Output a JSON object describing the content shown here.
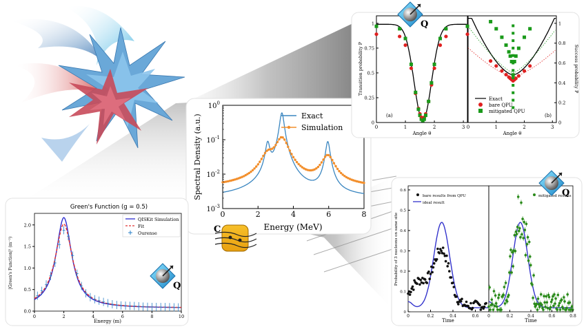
{
  "chart_data": [
    {
      "id": "spectral",
      "type": "line",
      "xlabel": "Energy (MeV)",
      "ylabel": "Spectral Density (a.u.)",
      "xlim": [
        0,
        8
      ],
      "ylim": [
        0.001,
        1
      ],
      "yscale": "log",
      "xticks": [
        "0",
        "2",
        "4",
        "6",
        "8"
      ],
      "yticks": [
        "10^-3",
        "10^-2",
        "10^-1",
        "10^0"
      ],
      "legend_position": "top-right",
      "series": [
        {
          "name": "Exact",
          "color": "#3a86c0",
          "peaks": [
            2.55,
            3.35,
            5.95
          ],
          "heights": [
            0.075,
            0.6,
            0.085
          ],
          "baseline": 0.002
        },
        {
          "name": "Simulation",
          "color": "#f28e2b",
          "marker": "dot",
          "x_step": 0.1,
          "peaks": [
            2.55,
            3.35,
            5.95
          ],
          "heights": [
            0.028,
            0.11,
            0.03
          ],
          "baseline": 0.004
        }
      ]
    },
    {
      "id": "transition",
      "type": "scatter",
      "panel_labels": [
        "(a)",
        "(b)"
      ],
      "xlabel": "Angle θ",
      "ylabel_left": "Transition probability P",
      "ylabel_right": "Success probability P",
      "xlim": [
        0,
        3.14
      ],
      "ylim": [
        0,
        1
      ],
      "xticks": [
        "0",
        "1",
        "2",
        "3"
      ],
      "yticks_left": [
        "0",
        "0.25",
        "0.5",
        "0.75",
        "1"
      ],
      "yticks_right": [
        "0",
        "0.2",
        "0.4",
        "0.6",
        "0.8",
        "1"
      ],
      "legend": [
        "Exact",
        "bare QPU",
        "mitigated QPU"
      ],
      "colors": {
        "exact": "#000000",
        "bare": "#e02020",
        "mitigated": "#1a9a1a"
      }
    },
    {
      "id": "greens",
      "type": "line",
      "title": "Green's Function (g = 0.5)",
      "xlabel": "Energy (m)",
      "ylabel": "|Green's Function|² (m⁻²)",
      "xlim": [
        0,
        10
      ],
      "ylim": [
        0,
        2.2
      ],
      "xticks": [
        "0",
        "2",
        "4",
        "6",
        "8",
        "10"
      ],
      "yticks": [
        "0.0",
        "0.5",
        "1.0",
        "1.5",
        "2.0"
      ],
      "legend": [
        "QISKit Simulation",
        "Fit",
        "Ourense"
      ],
      "peak_x": 2.0,
      "peak_y": 2.15,
      "colors": {
        "sim": "#2b2bd0",
        "fit": "#e03030",
        "ourense": "#2a80c8"
      }
    },
    {
      "id": "nucleons",
      "type": "scatter",
      "ylabel": "Probability of 3 nucleons on same site",
      "xlabel": "Time",
      "xticks_left": [
        "0",
        "0.2",
        "0.4",
        "0.6"
      ],
      "xticks_right": [
        "0",
        "0.2",
        "0.4",
        "0.6",
        "0.8"
      ],
      "yticks": [
        "0",
        "0.1",
        "0.2",
        "0.3",
        "0.4",
        "0.5",
        "0.6"
      ],
      "legend_left": [
        "bare results from QPU",
        "ideal result"
      ],
      "legend_right": [
        "mitigated results"
      ],
      "colors": {
        "bare": "#111111",
        "ideal": "#3333cc",
        "mitigated": "#2a8a1a"
      }
    }
  ],
  "badges": {
    "qpu_letter": "Q",
    "classical_letter": "C"
  }
}
